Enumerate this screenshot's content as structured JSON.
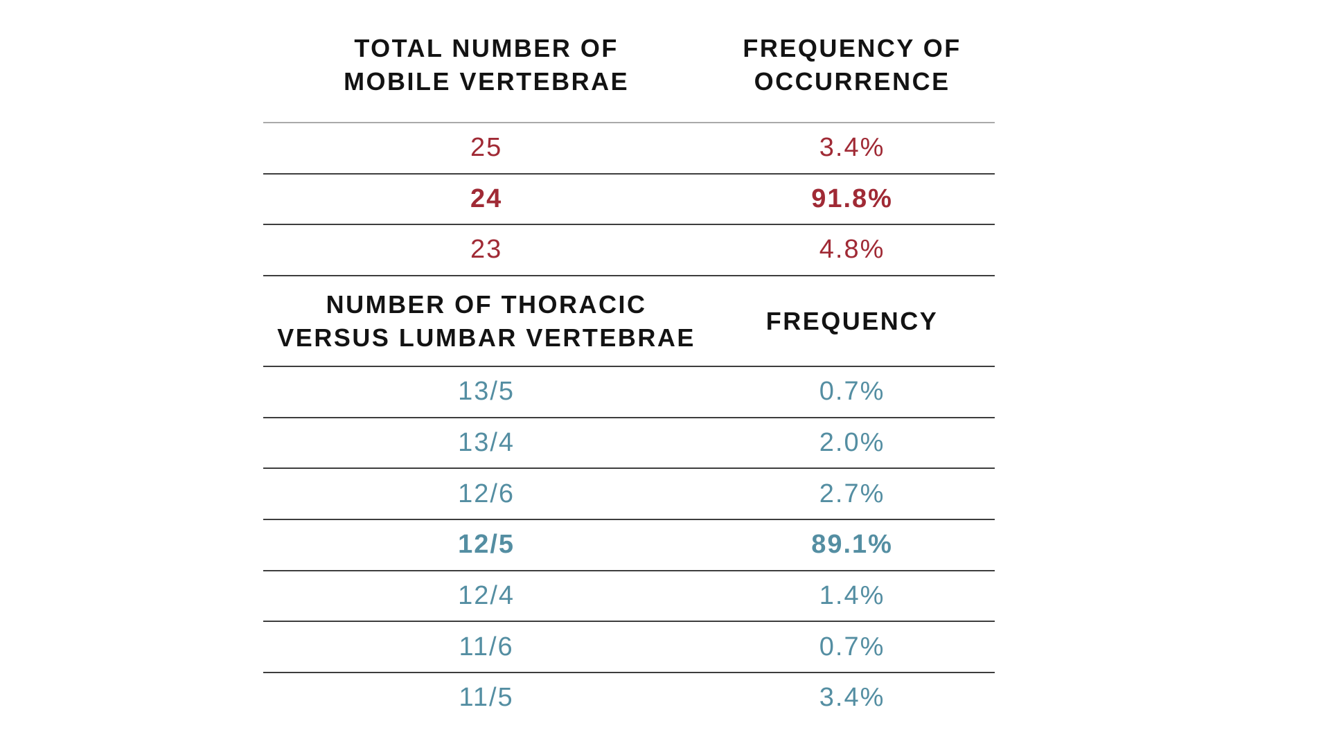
{
  "colors": {
    "background": "#ffffff",
    "header_text": "#131313",
    "table1_accent": "#a02a35",
    "table2_accent": "#548ea2",
    "rule_light": "#a9a9a9",
    "rule_dark": "#3d3d3d"
  },
  "tables": [
    {
      "id": "total-mobile-vertebrae",
      "accent": "#a02a35",
      "col1_header_lines": [
        "TOTAL NUMBER OF",
        "MOBILE VERTEBRAE"
      ],
      "col2_header_lines": [
        "FREQUENCY OF",
        "OCCURRENCE"
      ],
      "rows": [
        {
          "label": "25",
          "value": "3.4%",
          "emphasis": false
        },
        {
          "label": "24",
          "value": "91.8%",
          "emphasis": true
        },
        {
          "label": "23",
          "value": "4.8%",
          "emphasis": false
        }
      ]
    },
    {
      "id": "thoracic-versus-lumbar",
      "accent": "#548ea2",
      "col1_header_lines": [
        "NUMBER OF THORACIC",
        "VERSUS LUMBAR VERTEBRAE"
      ],
      "col2_header_lines": [
        "FREQUENCY"
      ],
      "rows": [
        {
          "label": "13/5",
          "value": "0.7%",
          "emphasis": false
        },
        {
          "label": "13/4",
          "value": "2.0%",
          "emphasis": false
        },
        {
          "label": "12/6",
          "value": "2.7%",
          "emphasis": false
        },
        {
          "label": "12/5",
          "value": "89.1%",
          "emphasis": true
        },
        {
          "label": "12/4",
          "value": "1.4%",
          "emphasis": false
        },
        {
          "label": "11/6",
          "value": "0.7%",
          "emphasis": false
        },
        {
          "label": "11/5",
          "value": "3.4%",
          "emphasis": false
        }
      ]
    }
  ],
  "chart_data": [
    {
      "type": "table",
      "title": "Total number of mobile vertebrae vs frequency of occurrence",
      "columns": [
        "TOTAL NUMBER OF MOBILE VERTEBRAE",
        "FREQUENCY OF OCCURRENCE"
      ],
      "rows": [
        [
          "25",
          "3.4%"
        ],
        [
          "24",
          "91.8%"
        ],
        [
          "23",
          "4.8%"
        ]
      ],
      "highlighted_row": [
        "24",
        "91.8%"
      ],
      "accent_color": "#a02a35"
    },
    {
      "type": "table",
      "title": "Number of thoracic versus lumbar vertebrae vs frequency",
      "columns": [
        "NUMBER OF THORACIC VERSUS LUMBAR VERTEBRAE",
        "FREQUENCY"
      ],
      "rows": [
        [
          "13/5",
          "0.7%"
        ],
        [
          "13/4",
          "2.0%"
        ],
        [
          "12/6",
          "2.7%"
        ],
        [
          "12/5",
          "89.1%"
        ],
        [
          "12/4",
          "1.4%"
        ],
        [
          "11/6",
          "0.7%"
        ],
        [
          "11/5",
          "3.4%"
        ]
      ],
      "highlighted_row": [
        "12/5",
        "89.1%"
      ],
      "accent_color": "#548ea2"
    }
  ]
}
